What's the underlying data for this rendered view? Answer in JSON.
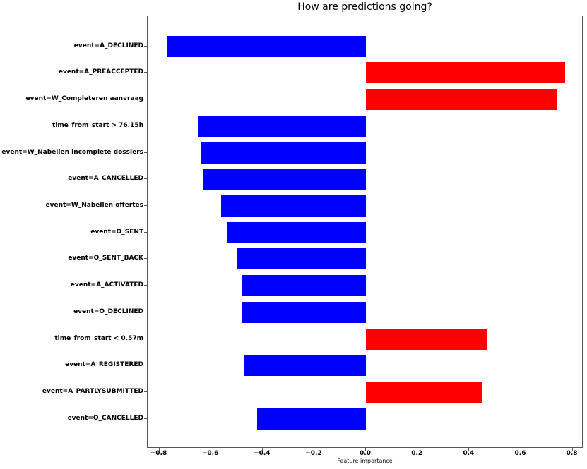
{
  "chart_data": {
    "type": "bar",
    "orientation": "horizontal",
    "title": "How are predictions going?",
    "xlabel": "Feature importance",
    "ylabel": "",
    "grid": false,
    "legend": null,
    "xlim": [
      -0.845,
      0.842
    ],
    "xticks": [
      -0.8,
      -0.6,
      -0.4,
      -0.2,
      0.0,
      0.2,
      0.4,
      0.6,
      0.8
    ],
    "xtick_labels": [
      "−0.8",
      "−0.6",
      "−0.4",
      "−0.2",
      "0.0",
      "0.2",
      "0.4",
      "0.6",
      "0.8"
    ],
    "categories": [
      "event=A_DECLINED",
      "event=A_PREACCEPTED",
      "event=W_Completeren aanvraag",
      "time_from_start > 76.15h",
      "event=W_Nabellen incomplete dossiers",
      "event=A_CANCELLED",
      "event=W_Nabellen offertes",
      "event=O_SENT",
      "event=O_SENT_BACK",
      "event=A_ACTIVATED",
      "event=O_DECLINED",
      "time_from_start < 0.57m",
      "event=A_REGISTERED",
      "event=A_PARTLYSUBMITTED",
      "event=O_CANCELLED"
    ],
    "values": [
      -0.77,
      0.77,
      0.74,
      -0.65,
      -0.64,
      -0.63,
      -0.56,
      -0.54,
      -0.5,
      -0.48,
      -0.48,
      0.47,
      -0.47,
      0.45,
      -0.42
    ],
    "bar_colors": {
      "positive": "#ff0000",
      "negative": "#0000ff"
    }
  },
  "colors": {
    "spine": "#555555",
    "background": "#ffffff",
    "text": "#000000"
  }
}
